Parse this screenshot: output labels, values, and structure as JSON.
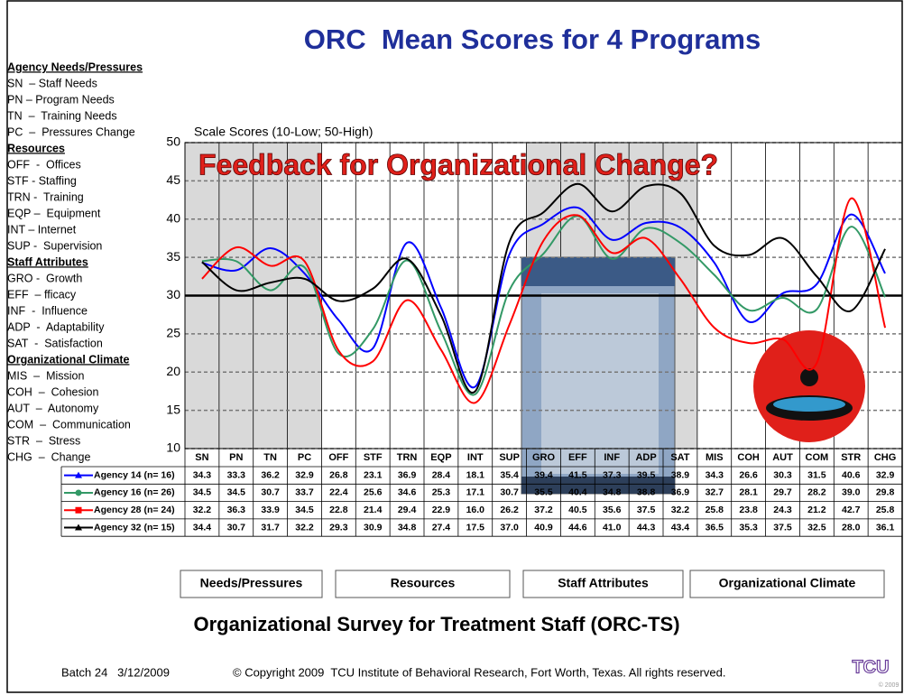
{
  "chart_data": {
    "type": "line",
    "title": "ORC  Mean Scores for 4 Programs",
    "y_label": "Scale Scores (10-Low; 50-High)",
    "annotation": "Feedback for Organizational Change?",
    "categories": [
      "SN",
      "PN",
      "TN",
      "PC",
      "OFF",
      "STF",
      "TRN",
      "EQP",
      "INT",
      "SUP",
      "GRO",
      "EFF",
      "INF",
      "ADP",
      "SAT",
      "MIS",
      "COH",
      "AUT",
      "COM",
      "STR",
      "CHG"
    ],
    "series": [
      {
        "name": "Agency 14 (n= 16)",
        "color": "#0000ff",
        "marker": "triangle",
        "values": [
          34.3,
          33.3,
          36.2,
          32.9,
          26.8,
          23.1,
          36.9,
          28.4,
          18.1,
          35.4,
          39.4,
          41.5,
          37.3,
          39.5,
          38.9,
          34.3,
          26.6,
          30.3,
          31.5,
          40.6,
          32.9
        ],
        "value_labels": [
          "34.3",
          "33.3",
          "36.2",
          "32.9",
          "26.8",
          "23.1",
          "36.9",
          "28.4",
          "18.1",
          "35.4",
          "39.4",
          "41.5",
          "37.3",
          "39.5",
          "38.9",
          "34.3",
          "26.6",
          "30.3",
          "31.5",
          "40.6",
          "32.9"
        ]
      },
      {
        "name": "Agency 16 (n= 26)",
        "color": "#339966",
        "marker": "circle",
        "values": [
          34.5,
          34.5,
          30.7,
          33.7,
          22.4,
          25.6,
          34.6,
          25.3,
          17.1,
          30.7,
          35.5,
          40.4,
          34.8,
          38.8,
          36.9,
          32.7,
          28.1,
          29.7,
          28.2,
          39.0,
          29.8
        ],
        "value_labels": [
          "34.5",
          "34.5",
          "30.7",
          "33.7",
          "22.4",
          "25.6",
          "34.6",
          "25.3",
          "17.1",
          "30.7",
          "35.5",
          "40.4",
          "34.8",
          "38.8",
          "36.9",
          "32.7",
          "28.1",
          "29.7",
          "28.2",
          "39.0",
          "29.8"
        ]
      },
      {
        "name": "Agency 28 (n= 24)",
        "color": "#ff0000",
        "marker": "square",
        "values": [
          32.2,
          36.3,
          33.9,
          34.5,
          22.8,
          21.4,
          29.4,
          22.9,
          16.0,
          26.2,
          37.2,
          40.5,
          35.6,
          37.5,
          32.2,
          25.8,
          23.8,
          24.3,
          21.2,
          42.7,
          25.8
        ],
        "value_labels": [
          "32.2",
          "36.3",
          "33.9",
          "34.5",
          "22.8",
          "21.4",
          "29.4",
          "22.9",
          "16.0",
          "26.2",
          "37.2",
          "40.5",
          "35.6",
          "37.5",
          "32.2",
          "25.8",
          "23.8",
          "24.3",
          "21.2",
          "42.7",
          "25.8"
        ]
      },
      {
        "name": "Agency 32 (n= 15)",
        "color": "#000000",
        "marker": "triangle",
        "values": [
          34.4,
          30.7,
          31.7,
          32.2,
          29.3,
          30.9,
          34.8,
          27.4,
          17.5,
          37.0,
          40.9,
          44.6,
          41.0,
          44.3,
          43.4,
          36.5,
          35.3,
          37.5,
          32.5,
          28.0,
          36.1
        ],
        "value_labels": [
          "34.4",
          "30.7",
          "31.7",
          "32.2",
          "29.3",
          "30.9",
          "34.8",
          "27.4",
          "17.5",
          "37.0",
          "40.9",
          "44.6",
          "41.0",
          "44.3",
          "43.4",
          "36.5",
          "35.3",
          "37.5",
          "32.5",
          "28.0",
          "36.1"
        ]
      }
    ],
    "ylim": [
      10,
      50
    ],
    "yticks": [
      10,
      15,
      20,
      25,
      30,
      35,
      40,
      45,
      50
    ],
    "reference_line": 30,
    "grid": true,
    "groups": [
      "Needs/Pressures",
      "Resources",
      "Staff Attributes",
      "Organizational Climate"
    ],
    "subtitle": "Organizational Survey for Treatment Staff (ORC-TS)"
  },
  "legend_panel": [
    {
      "heading": "Agency Needs/Pressures",
      "items": [
        "SN  – Staff Needs",
        "PN – Program Needs",
        "TN  –  Training Needs",
        "PC  –  Pressures Change"
      ]
    },
    {
      "heading": "Resources",
      "items": [
        "OFF  -  Offices",
        "STF - Staffing",
        "TRN -  Training",
        "EQP –  Equipment",
        "INT – Internet",
        "SUP -  Supervision"
      ]
    },
    {
      "heading": "Staff Attributes",
      "items": [
        "GRO -  Growth",
        "EFF  – fficacy",
        "INF  -  Influence",
        "ADP  -  Adaptability",
        "SAT  -  Satisfaction"
      ]
    },
    {
      "heading": "Organizational Climate",
      "items": [
        "MIS  –  Mission",
        "COH  –  Cohesion",
        "AUT  –  Autonomy",
        "COM  –  Communication",
        "STR  –  Stress",
        "CHG  –  Change"
      ]
    }
  ],
  "footer": {
    "batch": "Batch 24   3/12/2009",
    "copyright": "© Copyright 2009  TCU Institute of Behavioral Research, Fort Worth, Texas. All rights reserved.",
    "logo": "TCU",
    "logo_year": "© 2009"
  }
}
